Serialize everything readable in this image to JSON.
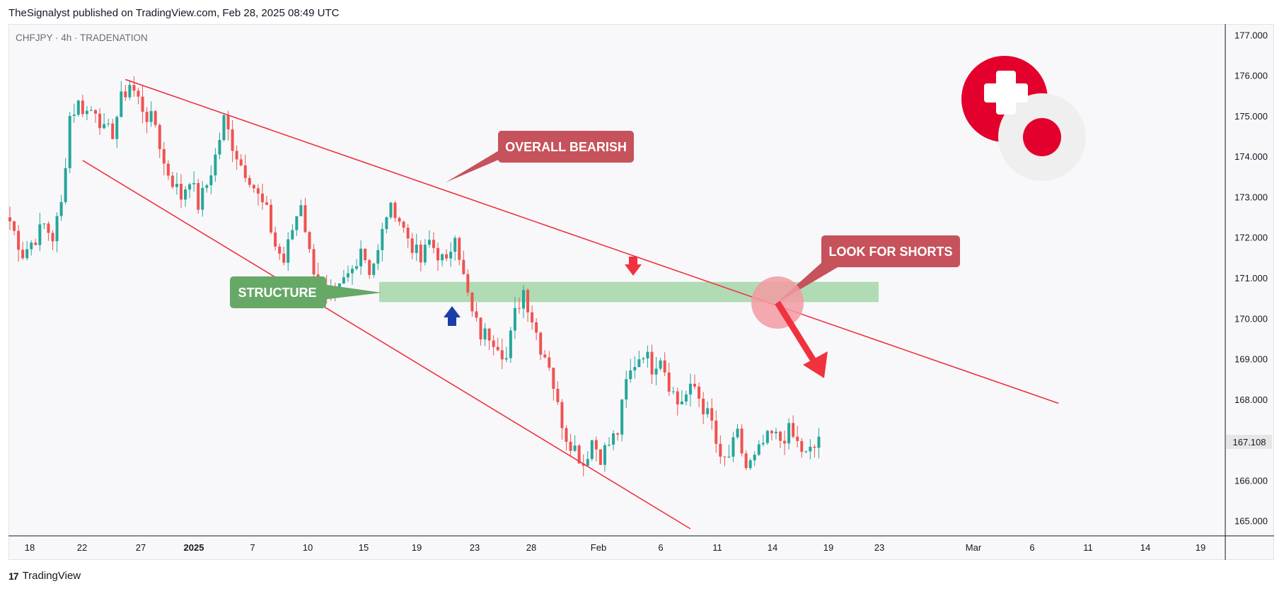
{
  "header": {
    "published": "TheSignalyst published on TradingView.com, Feb 28, 2025 08:49 UTC",
    "symbol_line": "CHFJPY · 4h · TRADENATION"
  },
  "footer": {
    "brand": "TradingView",
    "logo_glyph": "17"
  },
  "annotations": {
    "overall_bearish": "OVERALL BEARISH",
    "structure": "STRUCTURE",
    "look_for_shorts": "LOOK FOR SHORTS"
  },
  "colors": {
    "up": "#26a69a",
    "down": "#ef5350",
    "trendline": "#f0323e",
    "structure_zone": "#a5d6a7",
    "structure_label": "#66a866",
    "callout": "#c6525b",
    "blue_arrow": "#1a3fa6",
    "brand_red": "#e3002c"
  },
  "chart_data": {
    "type": "candlestick",
    "symbol": "CHFJPY",
    "timeframe": "4h",
    "ylim": [
      164.8,
      177.2
    ],
    "y_ticks": [
      "165.000",
      "166.000",
      "167.000",
      "168.000",
      "169.000",
      "170.000",
      "171.000",
      "172.000",
      "173.000",
      "174.000",
      "175.000",
      "176.000",
      "177.000"
    ],
    "x_ticks": [
      {
        "label": "18",
        "bold": false
      },
      {
        "label": "22",
        "bold": false
      },
      {
        "label": "27",
        "bold": false
      },
      {
        "label": "2025",
        "bold": true
      },
      {
        "label": "7",
        "bold": false
      },
      {
        "label": "10",
        "bold": false
      },
      {
        "label": "15",
        "bold": false
      },
      {
        "label": "19",
        "bold": false
      },
      {
        "label": "23",
        "bold": false
      },
      {
        "label": "28",
        "bold": false
      },
      {
        "label": "Feb",
        "bold": false
      },
      {
        "label": "6",
        "bold": false
      },
      {
        "label": "11",
        "bold": false
      },
      {
        "label": "14",
        "bold": false
      },
      {
        "label": "19",
        "bold": false
      },
      {
        "label": "23",
        "bold": false
      },
      {
        "label": "Mar",
        "bold": false
      },
      {
        "label": "6",
        "bold": false
      },
      {
        "label": "11",
        "bold": false
      },
      {
        "label": "14",
        "bold": false
      },
      {
        "label": "19",
        "bold": false
      }
    ],
    "last_price": "167.108",
    "structure_zone": [
      170.4,
      170.9
    ],
    "close_path": [
      [
        0,
        172.4
      ],
      [
        3,
        171.6
      ],
      [
        6,
        172.0
      ],
      [
        8,
        172.3
      ],
      [
        10,
        172.0
      ],
      [
        12,
        172.8
      ],
      [
        14,
        175.0
      ],
      [
        16,
        175.3
      ],
      [
        18,
        175.1
      ],
      [
        20,
        175.2
      ],
      [
        22,
        174.6
      ],
      [
        24,
        174.6
      ],
      [
        26,
        175.4
      ],
      [
        28,
        175.8
      ],
      [
        30,
        175.4
      ],
      [
        32,
        175.0
      ],
      [
        34,
        174.8
      ],
      [
        36,
        173.8
      ],
      [
        38,
        173.4
      ],
      [
        40,
        173.0
      ],
      [
        42,
        173.5
      ],
      [
        44,
        172.8
      ],
      [
        46,
        173.3
      ],
      [
        48,
        174.0
      ],
      [
        50,
        174.9
      ],
      [
        52,
        174.3
      ],
      [
        54,
        173.8
      ],
      [
        56,
        173.5
      ],
      [
        58,
        173.0
      ],
      [
        60,
        172.6
      ],
      [
        62,
        171.8
      ],
      [
        64,
        171.4
      ],
      [
        66,
        172.2
      ],
      [
        68,
        172.9
      ],
      [
        70,
        171.6
      ],
      [
        72,
        170.9
      ],
      [
        74,
        170.5
      ],
      [
        76,
        170.5
      ],
      [
        78,
        170.9
      ],
      [
        80,
        171.2
      ],
      [
        82,
        171.8
      ],
      [
        84,
        171.2
      ],
      [
        86,
        171.6
      ],
      [
        88,
        172.6
      ],
      [
        90,
        172.7
      ],
      [
        92,
        172.2
      ],
      [
        94,
        171.8
      ],
      [
        96,
        171.4
      ],
      [
        98,
        171.9
      ],
      [
        100,
        171.6
      ],
      [
        102,
        171.3
      ],
      [
        104,
        172.2
      ],
      [
        106,
        171.0
      ],
      [
        108,
        170.1
      ],
      [
        110,
        169.6
      ],
      [
        112,
        169.6
      ],
      [
        114,
        169.4
      ],
      [
        116,
        169.0
      ],
      [
        118,
        170.1
      ],
      [
        120,
        170.7
      ],
      [
        122,
        170.0
      ],
      [
        124,
        169.3
      ],
      [
        126,
        168.9
      ],
      [
        128,
        167.8
      ],
      [
        130,
        167.1
      ],
      [
        132,
        166.8
      ],
      [
        134,
        166.4
      ],
      [
        136,
        167.0
      ],
      [
        138,
        166.6
      ],
      [
        140,
        166.9
      ],
      [
        142,
        167.2
      ],
      [
        144,
        168.4
      ],
      [
        146,
        168.9
      ],
      [
        148,
        169.2
      ],
      [
        150,
        168.8
      ],
      [
        152,
        169.1
      ],
      [
        154,
        168.4
      ],
      [
        156,
        167.9
      ],
      [
        158,
        168.1
      ],
      [
        160,
        168.3
      ],
      [
        162,
        167.8
      ],
      [
        164,
        167.4
      ],
      [
        166,
        166.4
      ],
      [
        168,
        166.6
      ],
      [
        170,
        167.1
      ],
      [
        172,
        166.3
      ],
      [
        174,
        166.5
      ],
      [
        176,
        166.9
      ],
      [
        178,
        167.1
      ],
      [
        180,
        167.0
      ],
      [
        182,
        167.2
      ],
      [
        184,
        166.9
      ],
      [
        186,
        166.6
      ],
      [
        188,
        166.8
      ],
      [
        189,
        167.1
      ]
    ],
    "trendlines": [
      {
        "name": "upper",
        "from": [
          27,
          175.9
        ],
        "to": [
          245,
          167.9
        ]
      },
      {
        "name": "lower",
        "from": [
          17,
          173.9
        ],
        "to": [
          159,
          164.8
        ]
      }
    ]
  }
}
